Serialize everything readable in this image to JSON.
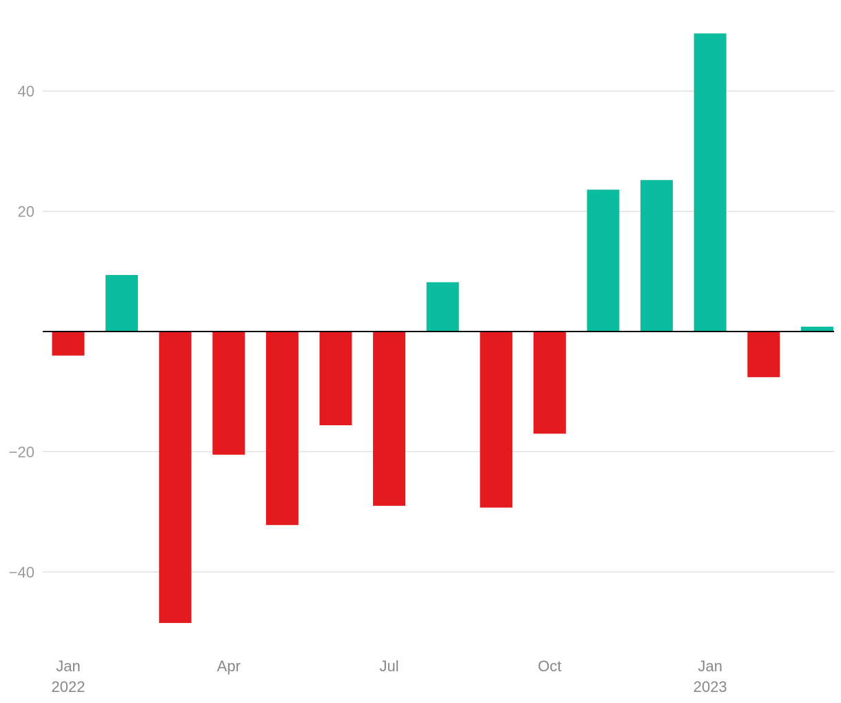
{
  "chart_data": {
    "type": "bar",
    "x": [
      "2022-01",
      "2022-02",
      "2022-03",
      "2022-04",
      "2022-05",
      "2022-06",
      "2022-07",
      "2022-08",
      "2022-09",
      "2022-10",
      "2022-11",
      "2022-12",
      "2023-01",
      "2023-02",
      "2023-03"
    ],
    "values": [
      -4.0,
      9.4,
      -48.5,
      -20.5,
      -32.2,
      -15.6,
      -29.0,
      8.2,
      -29.3,
      -17.0,
      23.6,
      25.2,
      49.6,
      -7.6,
      0.8
    ],
    "ylim": [
      -50,
      50
    ],
    "yticks": [
      {
        "value": 40,
        "label": "40"
      },
      {
        "value": 20,
        "label": "20"
      },
      {
        "value": -20,
        "label": "−20"
      },
      {
        "value": -40,
        "label": "−40"
      }
    ],
    "xticks": [
      {
        "x": "2022-01",
        "label": "Jan",
        "sublabel": "2022"
      },
      {
        "x": "2022-04",
        "label": "Apr",
        "sublabel": ""
      },
      {
        "x": "2022-07",
        "label": "Jul",
        "sublabel": ""
      },
      {
        "x": "2022-10",
        "label": "Oct",
        "sublabel": ""
      },
      {
        "x": "2023-01",
        "label": "Jan",
        "sublabel": "2023"
      }
    ],
    "grid": true,
    "title": "",
    "xlabel": "",
    "ylabel": "",
    "colors": {
      "positive": "#0bbc9e",
      "negative": "#e31b1e",
      "grid": "#e0e0e0",
      "zero": "#000000",
      "tick": "#9a9a9a"
    }
  }
}
